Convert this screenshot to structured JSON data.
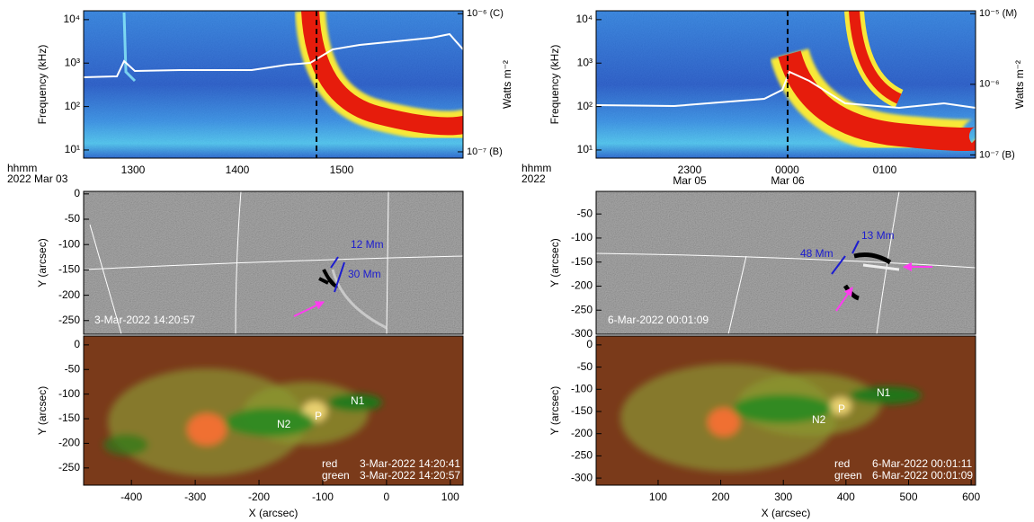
{
  "left": {
    "spectrogram": {
      "ylabel": "Frequency (kHz)",
      "log": true,
      "ylim": [
        6.5,
        16000
      ],
      "yticks": [
        {
          "value": 10,
          "label": "10¹"
        },
        {
          "value": 100,
          "label": "10²"
        },
        {
          "value": 1000,
          "label": "10³"
        },
        {
          "value": 10000,
          "label": "10⁴"
        }
      ],
      "y2label": "Watts m⁻²",
      "y2lim": [
        9e-08,
        1.05e-06
      ],
      "y2ticks": [
        {
          "value": 1e-07,
          "label": "10⁻⁷ (B)"
        },
        {
          "value": 1e-06,
          "label": "10⁻⁶ (C)"
        }
      ],
      "xticks": [
        "1300",
        "1400",
        "1500"
      ],
      "xunit": "hhmm",
      "date": "2022 Mar 03"
    },
    "difference": {
      "ylabel": "Y (arcsec)",
      "ylim": [
        -277,
        5
      ],
      "yticks": [
        0,
        -50,
        -100,
        -150,
        -200,
        -250
      ],
      "timestamp": "3-Mar-2022 14:20:57",
      "scale_a": "12 Mm",
      "scale_b": "30 Mm"
    },
    "composite": {
      "ylabel": "Y (arcsec)",
      "ylim": [
        -285,
        18
      ],
      "yticks": [
        0,
        -50,
        -100,
        -150,
        -200,
        -250
      ],
      "xlabel": "X (arcsec)",
      "xlim": [
        -475,
        120
      ],
      "xticks": [
        -400,
        -300,
        -200,
        -100,
        0,
        100
      ],
      "n1": "N1",
      "n2": "N2",
      "p": "P",
      "legend": [
        {
          "name": "red",
          "time": "3-Mar-2022 14:20:41"
        },
        {
          "name": "green",
          "time": "3-Mar-2022 14:20:57"
        }
      ]
    }
  },
  "right": {
    "spectrogram": {
      "ylabel": "Frequency (kHz)",
      "log": true,
      "ylim": [
        6.5,
        16000
      ],
      "yticks": [
        {
          "value": 10,
          "label": "10¹"
        },
        {
          "value": 100,
          "label": "10²"
        },
        {
          "value": 1000,
          "label": "10³"
        },
        {
          "value": 10000,
          "label": "10⁴"
        }
      ],
      "y2label": "Watts m⁻²",
      "y2lim": [
        9e-08,
        1.1e-05
      ],
      "y2ticks": [
        {
          "value": 1e-07,
          "label": "10⁻⁷ (B)"
        },
        {
          "value": 1e-06,
          "label": "10⁻⁶"
        },
        {
          "value": 1e-05,
          "label": "10⁻⁵ (M)"
        }
      ],
      "xticks": [
        "2300",
        "0000",
        "0100"
      ],
      "xdates": [
        "Mar 05",
        "Mar 06"
      ],
      "xunit": "hhmm",
      "date": "2022"
    },
    "difference": {
      "ylabel": "Y (arcsec)",
      "ylim": [
        -300,
        -3
      ],
      "yticks": [
        -50,
        -100,
        -150,
        -200,
        -250,
        -300
      ],
      "timestamp": "6-Mar-2022 00:01:09",
      "scale_a": "13 Mm",
      "scale_b": "48 Mm"
    },
    "composite": {
      "ylabel": "Y (arcsec)",
      "ylim": [
        -316,
        20
      ],
      "yticks": [
        0,
        -50,
        -100,
        -150,
        -200,
        -250,
        -300
      ],
      "xlabel": "X (arcsec)",
      "xlim": [
        1,
        607
      ],
      "xticks": [
        100,
        200,
        300,
        400,
        500,
        600
      ],
      "n1": "N1",
      "n2": "N2",
      "p": "P",
      "legend": [
        {
          "name": "red",
          "time": "6-Mar-2022 00:01:11"
        },
        {
          "name": "green",
          "time": "6-Mar-2022 00:01:09"
        }
      ]
    }
  }
}
